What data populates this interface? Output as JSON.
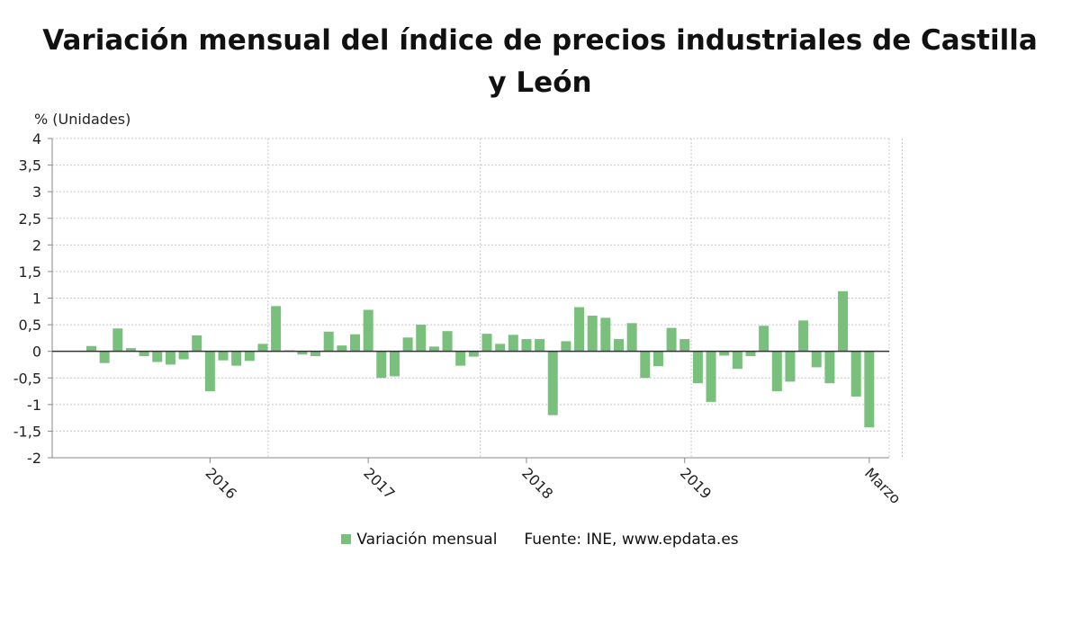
{
  "chart_data": {
    "type": "bar",
    "title": "Variación mensual del índice de precios industriales de Castilla y León",
    "ylabel": "% (Unidades)",
    "ylim": [
      -2,
      4
    ],
    "y_ticks": [
      "-2",
      "-1,5",
      "-1",
      "-0,5",
      "0",
      "0,5",
      "1",
      "1,5",
      "2",
      "2,5",
      "3",
      "3,5",
      "4"
    ],
    "x_tick_labels": [
      {
        "label": "2016",
        "index": 9
      },
      {
        "label": "2017",
        "index": 21
      },
      {
        "label": "2018",
        "index": 33
      },
      {
        "label": "2019",
        "index": 45
      },
      {
        "label": "Marzo",
        "index": 59
      }
    ],
    "vertical_gridlines_at_index": [
      13.4,
      29.5,
      45.5,
      61.5
    ],
    "grid": true,
    "legend_position": "bottom",
    "color": "#79c07d",
    "series": [
      {
        "name": "Variación mensual",
        "values": [
          0.1,
          -0.22,
          0.43,
          0.06,
          -0.09,
          -0.2,
          -0.25,
          -0.15,
          0.3,
          -0.75,
          -0.17,
          -0.27,
          -0.18,
          0.14,
          0.85,
          0.02,
          -0.06,
          -0.09,
          0.37,
          0.11,
          0.32,
          0.78,
          -0.5,
          -0.47,
          0.26,
          0.5,
          0.09,
          0.38,
          -0.27,
          -0.1,
          0.33,
          0.14,
          0.31,
          0.23,
          0.23,
          -1.2,
          0.19,
          0.83,
          0.67,
          0.63,
          0.23,
          0.53,
          -0.5,
          -0.28,
          0.44,
          0.23,
          -0.6,
          -0.95,
          -0.08,
          -0.33,
          -0.09,
          0.48,
          -0.75,
          -0.57,
          0.58,
          -0.3,
          -0.6,
          1.13,
          -0.85,
          -1.43
        ]
      }
    ]
  },
  "legend": {
    "series_label": "Variación mensual",
    "source": "Fuente: INE, www.epdata.es"
  }
}
